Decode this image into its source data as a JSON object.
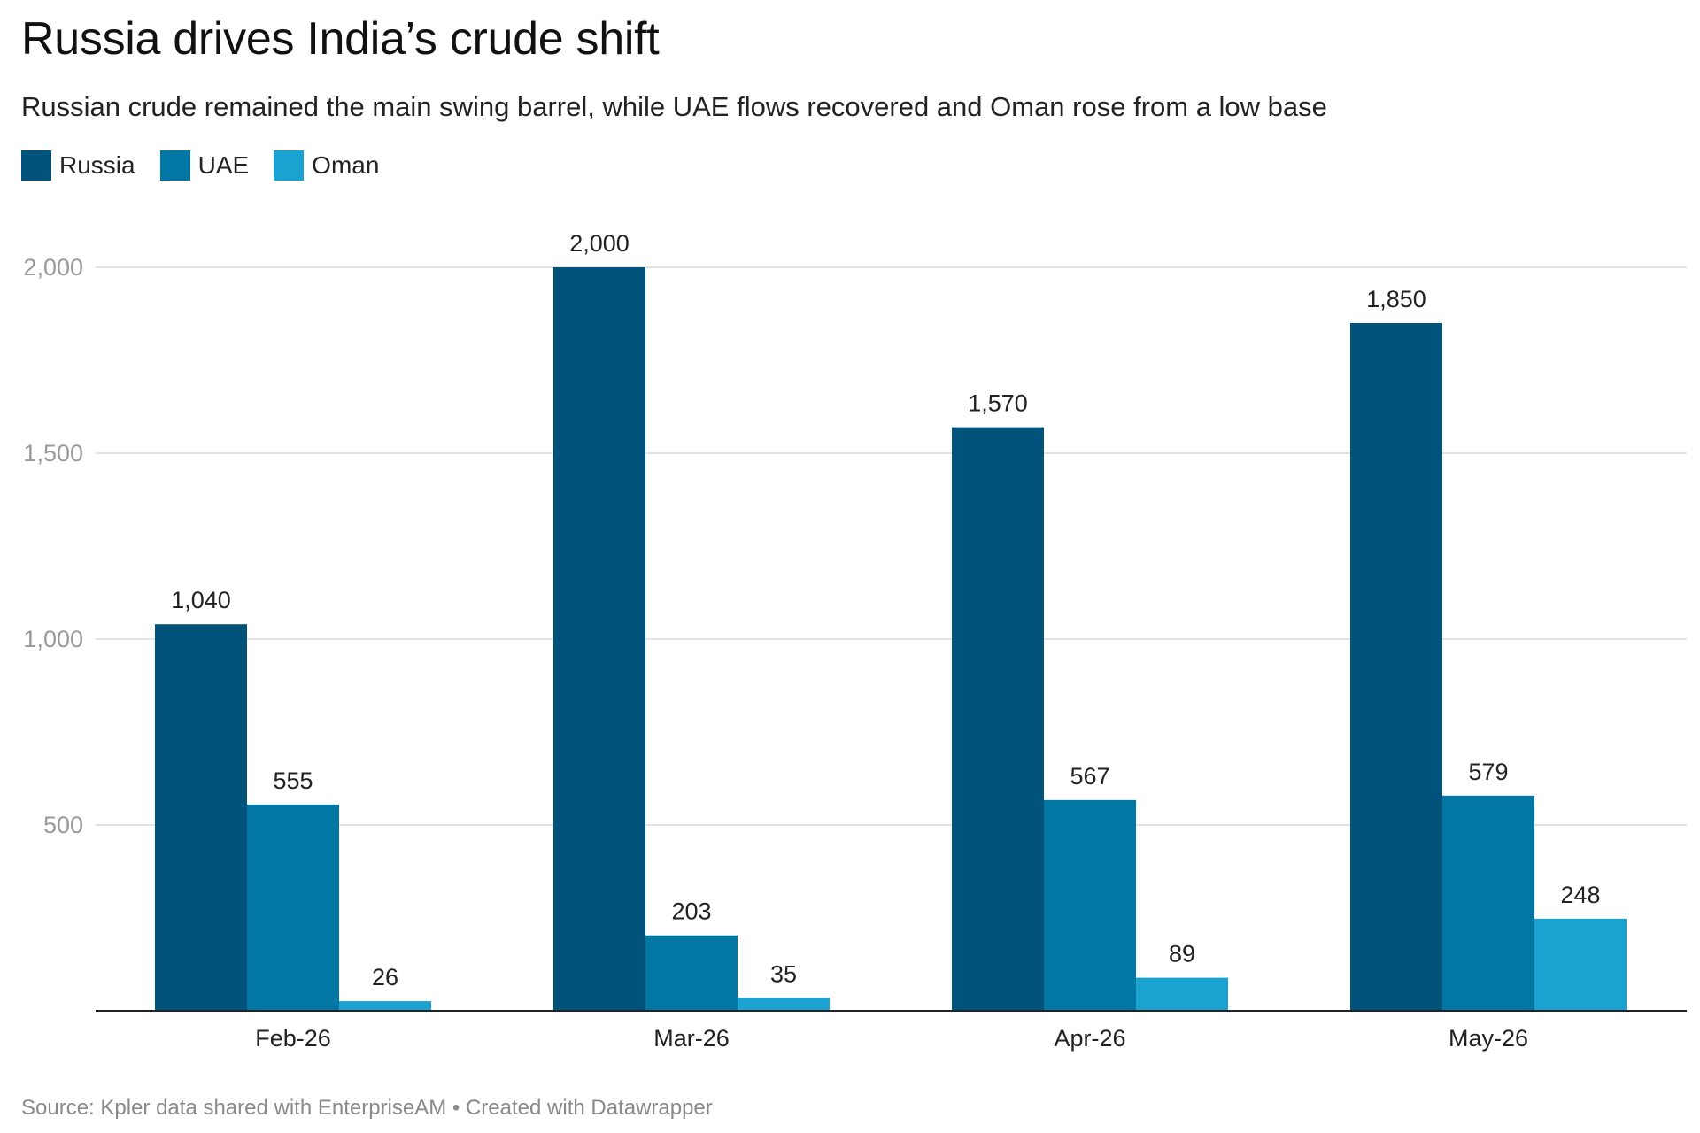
{
  "chart_data": {
    "type": "bar",
    "title": "Russia drives India’s crude shift",
    "subtitle": "Russian crude remained the main swing barrel, while UAE flows recovered and Oman rose from a low base",
    "categories": [
      "Feb-26",
      "Mar-26",
      "Apr-26",
      "May-26"
    ],
    "series": [
      {
        "name": "Russia",
        "color": "#02537c",
        "values": [
          1040,
          2000,
          1570,
          1850
        ]
      },
      {
        "name": "UAE",
        "color": "#0277a3",
        "values": [
          555,
          203,
          567,
          579
        ]
      },
      {
        "name": "Oman",
        "color": "#1aa3d1",
        "values": [
          26,
          35,
          89,
          248
        ]
      }
    ],
    "value_labels": [
      [
        "1,040",
        "2,000",
        "1,570",
        "1,850"
      ],
      [
        "555",
        "203",
        "567",
        "579"
      ],
      [
        "26",
        "35",
        "89",
        "248"
      ]
    ],
    "ylim": [
      0,
      2000
    ],
    "yticks": [
      {
        "value": 500,
        "label": "500"
      },
      {
        "value": 1000,
        "label": "1,000"
      },
      {
        "value": 1500,
        "label": "1,500"
      },
      {
        "value": 2000,
        "label": "2,000"
      }
    ],
    "xlabel": "",
    "ylabel": "",
    "grid": true,
    "legend_position": "top-left",
    "footer": "Source: Kpler data shared with EnterpriseAM • Created with Datawrapper"
  }
}
